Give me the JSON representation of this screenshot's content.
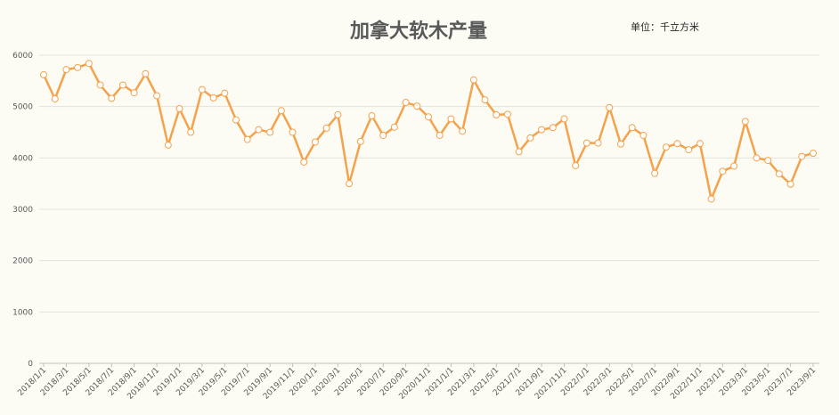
{
  "chart_data": {
    "type": "line",
    "title": "加拿大软木产量",
    "unit_note": "单位：千立方米",
    "xlabel": "",
    "ylabel": "",
    "ylim": [
      0,
      6000
    ],
    "yticks": [
      0,
      1000,
      2000,
      3000,
      4000,
      5000,
      6000
    ],
    "grid": true,
    "legend": "none",
    "x_tick_labels": [
      "2018/1/1",
      "2018/3/1",
      "2018/5/1",
      "2018/7/1",
      "2018/9/1",
      "2018/11/1",
      "2019/1/1",
      "2019/3/1",
      "2019/5/1",
      "2019/7/1",
      "2019/9/1",
      "2019/11/1",
      "2020/1/1",
      "2020/3/1",
      "2020/5/1",
      "2020/7/1",
      "2020/9/1",
      "2020/11/1",
      "2021/1/1",
      "2021/3/1",
      "2021/5/1",
      "2021/7/1",
      "2021/9/1",
      "2021/11/1",
      "2022/1/1",
      "2022/3/1",
      "2022/5/1",
      "2022/7/1",
      "2022/9/1",
      "2022/11/1",
      "2023/1/1",
      "2023/3/1",
      "2023/5/1",
      "2023/7/1",
      "2023/9/1"
    ],
    "colors": {
      "line": "#f4a24c",
      "marker_edge": "#f4a24c"
    },
    "series": [
      {
        "x": [
          "2018/1",
          "2018/2",
          "2018/3",
          "2018/4",
          "2018/5",
          "2018/6",
          "2018/7",
          "2018/8",
          "2018/9",
          "2018/10",
          "2018/11",
          "2018/12",
          "2019/1",
          "2019/2",
          "2019/3",
          "2019/4",
          "2019/5",
          "2019/6",
          "2019/7",
          "2019/8",
          "2019/9",
          "2019/10",
          "2019/11",
          "2019/12",
          "2020/1",
          "2020/2",
          "2020/3",
          "2020/4",
          "2020/5",
          "2020/6",
          "2020/7",
          "2020/8",
          "2020/9",
          "2020/10",
          "2020/11",
          "2020/12",
          "2021/1",
          "2021/2",
          "2021/3",
          "2021/4",
          "2021/5",
          "2021/6",
          "2021/7",
          "2021/8",
          "2021/9",
          "2021/10",
          "2021/11",
          "2021/12",
          "2022/1",
          "2022/2",
          "2022/3",
          "2022/4",
          "2022/5",
          "2022/6",
          "2022/7",
          "2022/8",
          "2022/9",
          "2022/10",
          "2022/11",
          "2022/12",
          "2023/1",
          "2023/2",
          "2023/3",
          "2023/4",
          "2023/5",
          "2023/6",
          "2023/7",
          "2023/8",
          "2023/9"
        ],
        "values": [
          5620,
          5150,
          5720,
          5760,
          5840,
          5420,
          5160,
          5420,
          5270,
          5640,
          5210,
          4250,
          4960,
          4500,
          5330,
          5170,
          5260,
          4740,
          4360,
          4550,
          4500,
          4920,
          4500,
          3920,
          4310,
          4580,
          4840,
          3500,
          4320,
          4820,
          4440,
          4600,
          5080,
          5010,
          4800,
          4440,
          4760,
          4520,
          5520,
          5130,
          4840,
          4850,
          4120,
          4390,
          4550,
          4590,
          4760,
          3850,
          4290,
          4290,
          4980,
          4270,
          4590,
          4440,
          3700,
          4210,
          4280,
          4160,
          4280,
          3200,
          3740,
          3840,
          4710,
          4000,
          3950,
          3690,
          3490,
          4030,
          4090
        ]
      }
    ]
  }
}
